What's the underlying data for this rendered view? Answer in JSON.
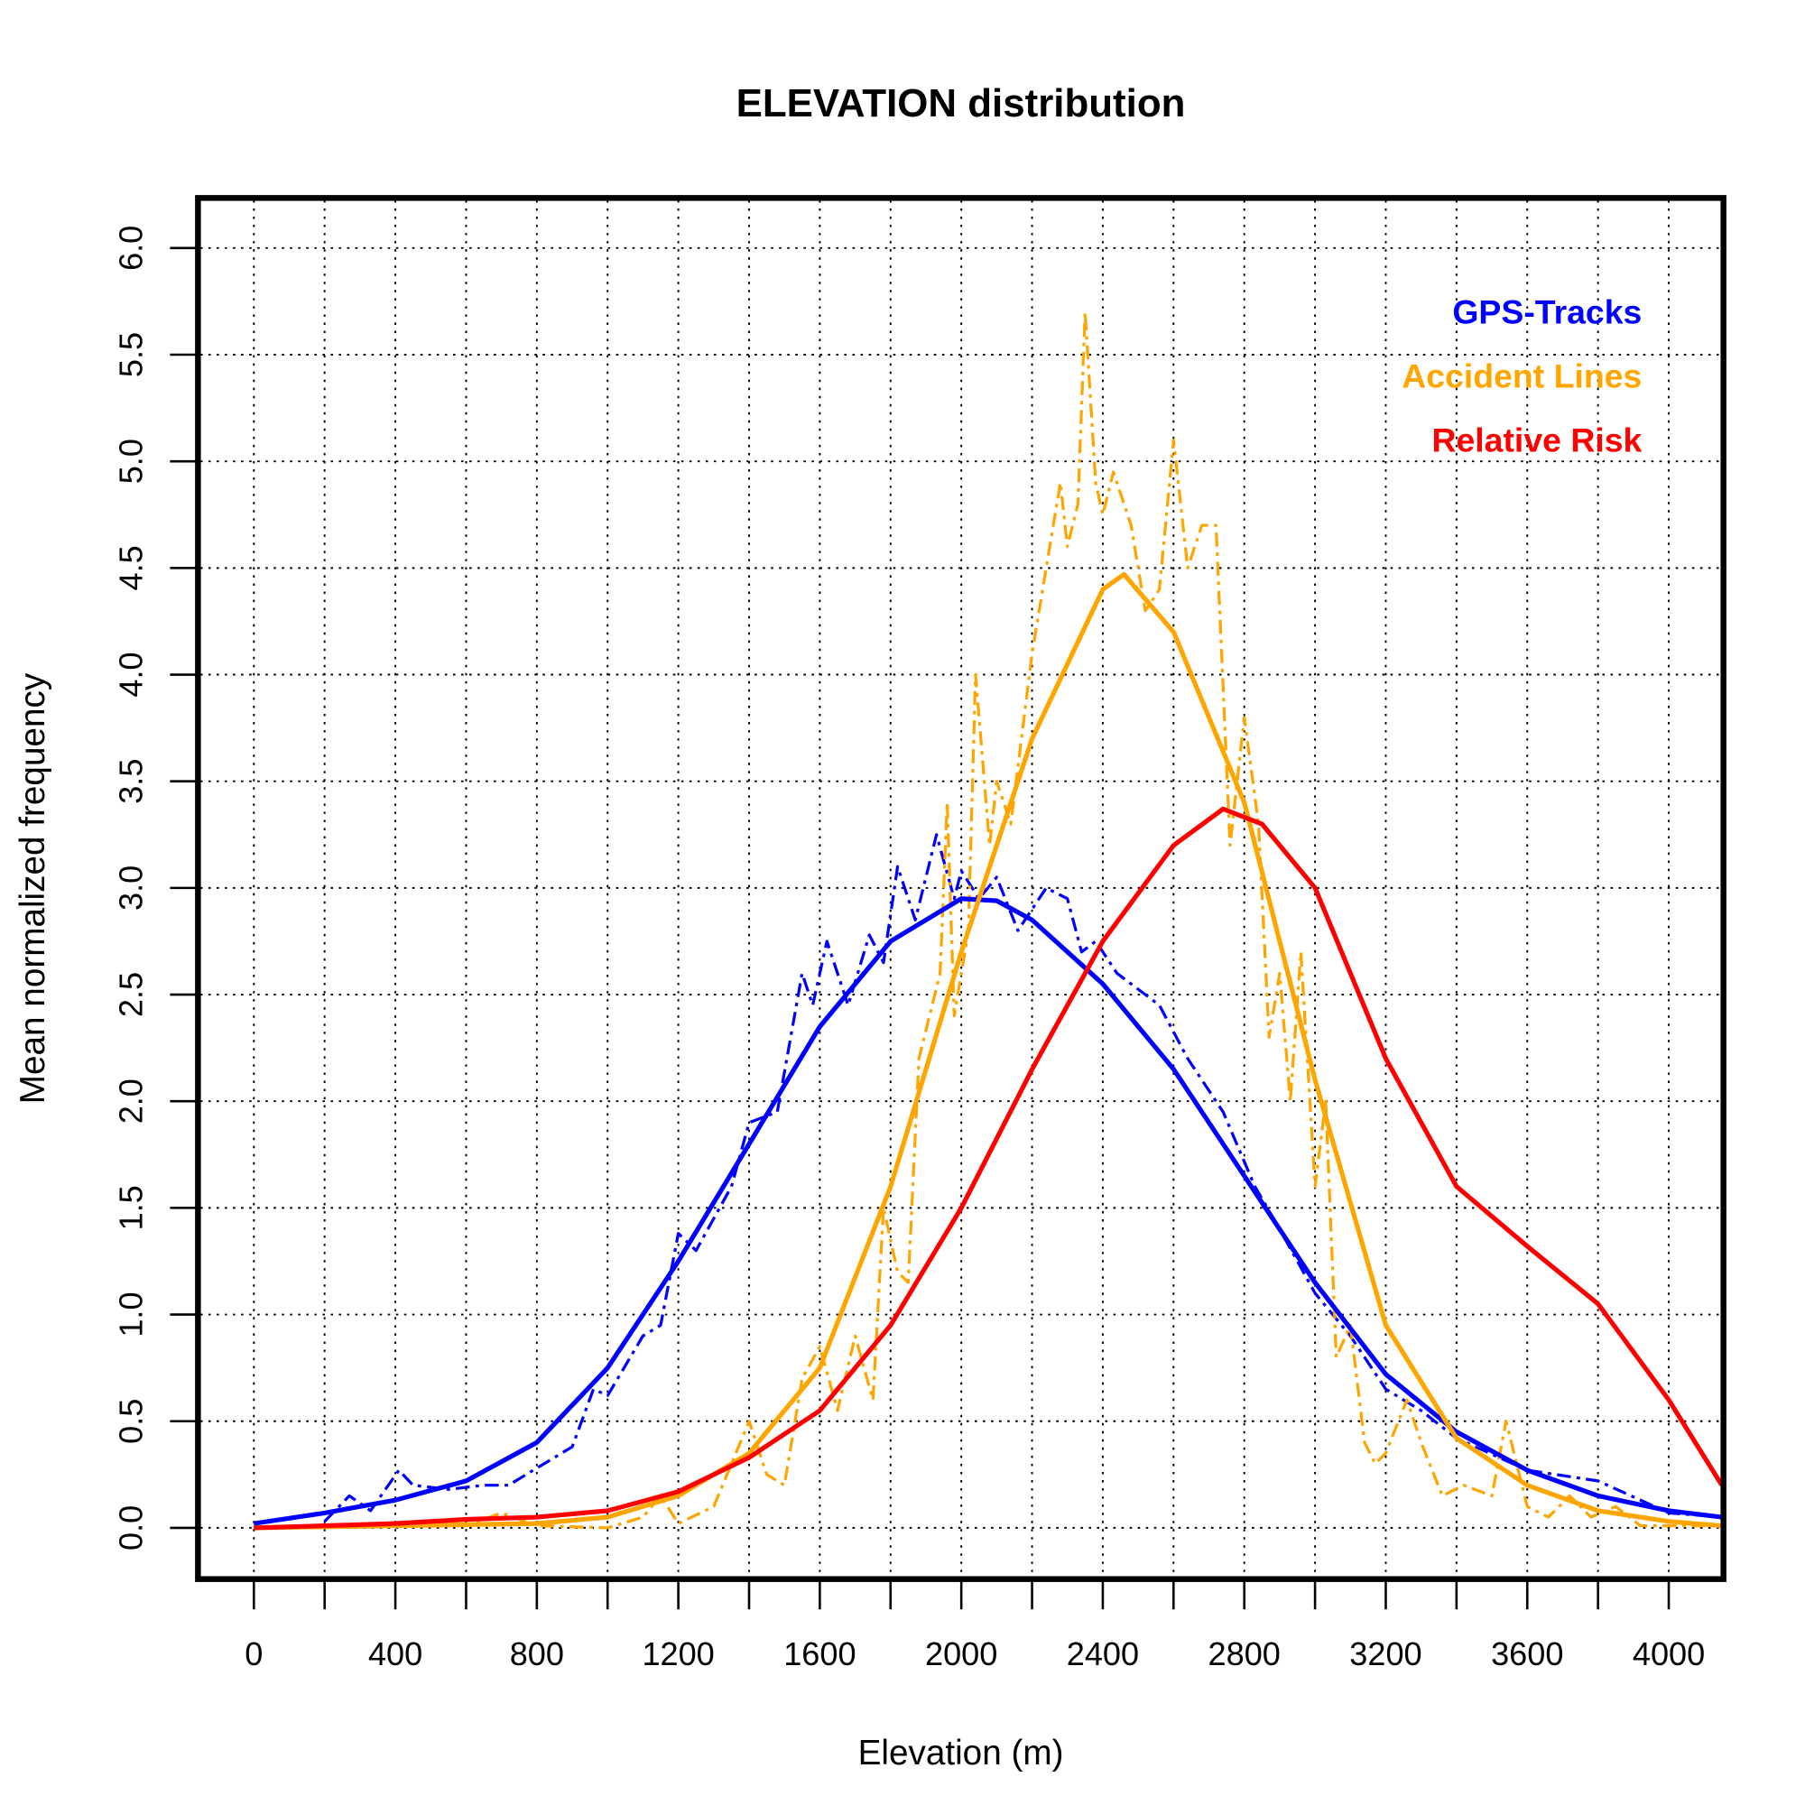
{
  "chart_data": {
    "type": "line",
    "title": "ELEVATION distribution",
    "xlabel": "Elevation (m)",
    "ylabel": "Mean normalized frequency",
    "xlim": [
      -160,
      4160
    ],
    "ylim": [
      -0.24,
      6.24
    ],
    "xticks": [
      0,
      400,
      800,
      1200,
      1600,
      2000,
      2400,
      2800,
      3200,
      3600,
      4000
    ],
    "xminor_ticks_step": 200,
    "yticks": [
      "0.0",
      "0.5",
      "1.0",
      "1.5",
      "2.0",
      "2.5",
      "3.0",
      "3.5",
      "4.0",
      "4.5",
      "5.0",
      "5.5",
      "6.0"
    ],
    "grid": true,
    "legend_placement": "top-right",
    "legend": [
      {
        "label": "GPS-Tracks",
        "color": "#0000ff"
      },
      {
        "label": "Accident Lines",
        "color": "#ffa500"
      },
      {
        "label": "Relative Risk",
        "color": "#ff0000"
      }
    ],
    "series": [
      {
        "name": "GPS-Tracks",
        "style": "solid",
        "color": "#0000ff",
        "x": [
          0,
          200,
          400,
          600,
          800,
          1000,
          1200,
          1400,
          1600,
          1800,
          2000,
          2100,
          2200,
          2400,
          2600,
          2800,
          3000,
          3200,
          3400,
          3600,
          3800,
          4000,
          4150
        ],
        "y": [
          0.02,
          0.07,
          0.13,
          0.22,
          0.4,
          0.75,
          1.25,
          1.8,
          2.35,
          2.75,
          2.95,
          2.94,
          2.85,
          2.55,
          2.15,
          1.65,
          1.15,
          0.72,
          0.45,
          0.27,
          0.15,
          0.08,
          0.05
        ]
      },
      {
        "name": "GPS-Tracks",
        "style": "dashed",
        "color": "#0000ff",
        "x": [
          200,
          270,
          330,
          410,
          450,
          550,
          650,
          720,
          800,
          900,
          960,
          1000,
          1100,
          1150,
          1200,
          1250,
          1350,
          1400,
          1480,
          1550,
          1580,
          1620,
          1680,
          1740,
          1780,
          1820,
          1870,
          1930,
          1980,
          2000,
          2050,
          2100,
          2160,
          2240,
          2300,
          2340,
          2380,
          2440,
          2560,
          2640,
          2740,
          2830,
          2900,
          3000,
          3100,
          3200,
          3300,
          3400,
          3600,
          3800,
          4000,
          4150
        ],
        "y": [
          0.03,
          0.15,
          0.08,
          0.27,
          0.2,
          0.18,
          0.2,
          0.2,
          0.28,
          0.38,
          0.65,
          0.62,
          0.9,
          0.95,
          1.38,
          1.3,
          1.6,
          1.9,
          1.95,
          2.6,
          2.45,
          2.75,
          2.45,
          2.78,
          2.65,
          3.1,
          2.85,
          3.25,
          2.95,
          3.08,
          2.95,
          3.05,
          2.8,
          3.0,
          2.95,
          2.7,
          2.75,
          2.6,
          2.45,
          2.2,
          1.95,
          1.6,
          1.4,
          1.1,
          0.9,
          0.65,
          0.55,
          0.42,
          0.27,
          0.22,
          0.07,
          0.05
        ]
      },
      {
        "name": "Accident Lines",
        "style": "solid",
        "color": "#ffa500",
        "x": [
          0,
          400,
          800,
          1000,
          1200,
          1400,
          1600,
          1800,
          2000,
          2200,
          2400,
          2460,
          2600,
          2800,
          3000,
          3200,
          3400,
          3600,
          3800,
          4000,
          4150
        ],
        "y": [
          0,
          0.01,
          0.02,
          0.05,
          0.15,
          0.35,
          0.75,
          1.6,
          2.7,
          3.7,
          4.4,
          4.47,
          4.2,
          3.4,
          2.1,
          0.95,
          0.42,
          0.2,
          0.08,
          0.03,
          0.01
        ]
      },
      {
        "name": "Accident Lines",
        "style": "dashed",
        "color": "#ffa500",
        "x": [
          0,
          600,
          700,
          800,
          1000,
          1100,
          1150,
          1200,
          1300,
          1400,
          1450,
          1500,
          1550,
          1600,
          1650,
          1700,
          1750,
          1780,
          1820,
          1850,
          1880,
          1940,
          1960,
          1980,
          2020,
          2040,
          2080,
          2100,
          2140,
          2200,
          2240,
          2280,
          2300,
          2330,
          2350,
          2380,
          2400,
          2430,
          2480,
          2520,
          2560,
          2600,
          2640,
          2680,
          2720,
          2760,
          2800,
          2840,
          2870,
          2900,
          2930,
          2960,
          3000,
          3030,
          3060,
          3100,
          3140,
          3170,
          3200,
          3260,
          3300,
          3360,
          3420,
          3500,
          3540,
          3600,
          3660,
          3720,
          3780,
          3850,
          3920,
          4150
        ],
        "y": [
          0,
          0.01,
          0.07,
          0.01,
          0,
          0.05,
          0.15,
          0.02,
          0.1,
          0.5,
          0.25,
          0.2,
          0.7,
          0.85,
          0.55,
          0.9,
          0.6,
          1.5,
          1.2,
          1.15,
          2.2,
          2.6,
          3.4,
          2.4,
          2.8,
          4.0,
          3.2,
          3.5,
          3.3,
          4.1,
          4.5,
          4.9,
          4.6,
          4.8,
          5.7,
          4.9,
          4.75,
          4.95,
          4.7,
          4.3,
          4.4,
          5.1,
          4.5,
          4.7,
          4.7,
          3.2,
          3.8,
          3.3,
          2.3,
          2.6,
          2.0,
          2.7,
          1.6,
          2.0,
          0.8,
          0.95,
          0.4,
          0.3,
          0.35,
          0.6,
          0.4,
          0.15,
          0.2,
          0.15,
          0.5,
          0.1,
          0.05,
          0.15,
          0.05,
          0.1,
          0.01,
          0.01
        ]
      },
      {
        "name": "Relative Risk",
        "style": "solid",
        "color": "#ff0000",
        "x": [
          0,
          200,
          400,
          600,
          800,
          1000,
          1200,
          1400,
          1600,
          1800,
          2000,
          2200,
          2400,
          2600,
          2740,
          2850,
          3000,
          3200,
          3400,
          3600,
          3800,
          4000,
          4150
        ],
        "y": [
          0,
          0.01,
          0.02,
          0.04,
          0.05,
          0.08,
          0.17,
          0.33,
          0.55,
          0.95,
          1.5,
          2.15,
          2.75,
          3.2,
          3.37,
          3.3,
          3.0,
          2.2,
          1.6,
          1.32,
          1.05,
          0.6,
          0.2
        ]
      }
    ]
  }
}
